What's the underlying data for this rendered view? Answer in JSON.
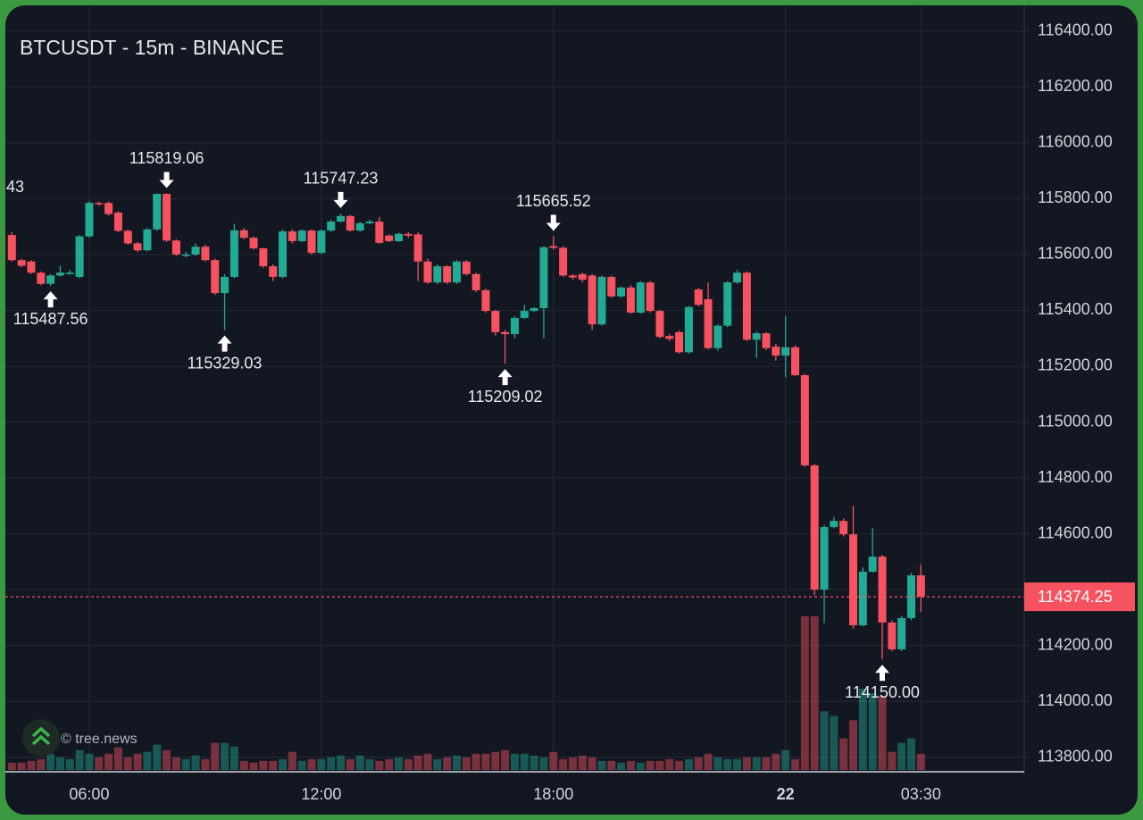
{
  "chart_data": {
    "type": "candlestick",
    "title": "BTCUSDT - 15m - BINANCE",
    "watermark": "© tree.news",
    "clipped_label": "43",
    "categories": [
      null,
      null,
      null,
      null,
      null,
      null,
      null,
      null,
      "06:00",
      null,
      null,
      null,
      null,
      null,
      null,
      null,
      null,
      null,
      null,
      null,
      null,
      null,
      null,
      null,
      null,
      null,
      null,
      null,
      null,
      null,
      null,
      null,
      "12:00",
      null,
      null,
      null,
      null,
      null,
      null,
      null,
      null,
      null,
      null,
      null,
      null,
      null,
      null,
      null,
      null,
      null,
      null,
      null,
      null,
      null,
      null,
      null,
      "18:00",
      null,
      null,
      null,
      null,
      null,
      null,
      null,
      null,
      null,
      null,
      null,
      null,
      null,
      null,
      null,
      null,
      null,
      null,
      null,
      null,
      null,
      null,
      null,
      "22",
      null,
      null,
      null,
      null,
      null,
      null,
      null,
      null,
      null,
      null,
      null,
      null,
      null,
      "03:30"
    ],
    "open": [
      115670,
      115580,
      115575,
      115535,
      115495,
      115525,
      115530,
      115520,
      115665,
      115785,
      115785,
      115750,
      115685,
      115640,
      115615,
      115690,
      115817,
      115650,
      115595,
      115600,
      115628,
      115580,
      115462,
      115520,
      115687,
      115660,
      115622,
      115558,
      115520,
      115683,
      115648,
      115686,
      115606,
      115686,
      115718,
      115738,
      115686,
      115712,
      115718,
      115668,
      115648,
      115674,
      115672,
      115575,
      115500,
      115558,
      115500,
      115575,
      115530,
      115472,
      115398,
      115322,
      115315,
      115373,
      115398,
      115408,
      115630,
      115624,
      115525,
      115530,
      115525,
      115350,
      115520,
      115450,
      115482,
      115392,
      115500,
      115398,
      115308,
      115322,
      115250,
      115475,
      115440,
      115265,
      115345,
      115500,
      115535,
      115295,
      115318,
      115270,
      115238,
      115268,
      115168,
      114845,
      114400,
      114624,
      114646,
      114598,
      114272,
      114464,
      114518,
      114282,
      114186,
      114298,
      114451
    ],
    "high": [
      115680,
      115585,
      115580,
      115540,
      115530,
      115560,
      115545,
      115670,
      115790,
      115790,
      115790,
      115755,
      115690,
      115645,
      115695,
      115819,
      115819.06,
      115655,
      115610,
      115640,
      115635,
      115585,
      115530,
      115710,
      115695,
      115665,
      115625,
      115565,
      115690,
      115690,
      115690,
      115690,
      115690,
      115725,
      115747.23,
      115742,
      115718,
      115725,
      115735,
      115672,
      115678,
      115680,
      115680,
      115585,
      115565,
      115562,
      115580,
      115580,
      115535,
      115478,
      115402,
      115330,
      115380,
      115420,
      115412,
      115630,
      115665.52,
      115630,
      115530,
      115535,
      115530,
      115525,
      115525,
      115486,
      115490,
      115505,
      115505,
      115402,
      115315,
      115328,
      115416,
      115480,
      115500,
      115350,
      115505,
      115545,
      115540,
      115325,
      115322,
      115280,
      115380,
      115275,
      115172,
      114850,
      114632,
      114660,
      114655,
      114700,
      114480,
      114620,
      114525,
      114290,
      114305,
      114460,
      114490
    ],
    "low": [
      115575,
      115555,
      115530,
      115490,
      115487.56,
      115520,
      115528,
      115515,
      115660,
      115775,
      115740,
      115680,
      115635,
      115610,
      115612,
      115685,
      115645,
      115595,
      115590,
      115595,
      115575,
      115455,
      115329.03,
      115515,
      115655,
      115618,
      115552,
      115505,
      115515,
      115640,
      115644,
      115600,
      115602,
      115682,
      115715,
      115682,
      115682,
      115708,
      115638,
      115644,
      115645,
      115660,
      115505,
      115495,
      115495,
      115495,
      115495,
      115525,
      115465,
      115392,
      115310,
      115209.02,
      115300,
      115370,
      115395,
      115300,
      115618,
      115520,
      115510,
      115500,
      115330,
      115345,
      115445,
      115445,
      115388,
      115388,
      115392,
      115300,
      115290,
      115245,
      115245,
      115415,
      115260,
      115255,
      115340,
      115495,
      115290,
      115230,
      115258,
      115220,
      115160,
      115165,
      114840,
      114380,
      114280,
      114620,
      114590,
      114260,
      114268,
      114460,
      114150,
      114180,
      114180,
      114290,
      114320
    ],
    "close": [
      115580,
      115560,
      115535,
      115495,
      115525,
      115535,
      115535,
      115665,
      115785,
      115780,
      115745,
      115685,
      115640,
      115615,
      115690,
      115817,
      115650,
      115600,
      115600,
      115628,
      115580,
      115462,
      115520,
      115687,
      115660,
      115622,
      115558,
      115520,
      115683,
      115648,
      115686,
      115606,
      115686,
      115718,
      115738,
      115686,
      115712,
      115718,
      115642,
      115648,
      115674,
      115668,
      115575,
      115500,
      115558,
      115500,
      115575,
      115530,
      115472,
      115398,
      115322,
      115315,
      115373,
      115398,
      115408,
      115626,
      115624,
      115525,
      115518,
      115510,
      115350,
      115520,
      115450,
      115482,
      115392,
      115500,
      115398,
      115305,
      115298,
      115250,
      115412,
      115420,
      115265,
      115345,
      115500,
      115535,
      115295,
      115318,
      115265,
      115238,
      115268,
      115168,
      114845,
      114400,
      114624,
      114646,
      114598,
      114272,
      114464,
      114518,
      114282,
      114186,
      114298,
      114451,
      114374.25
    ],
    "volume": [
      8,
      8,
      10,
      12,
      18,
      14,
      12,
      22,
      18,
      14,
      18,
      25,
      14,
      18,
      20,
      28,
      22,
      14,
      12,
      16,
      12,
      30,
      30,
      26,
      10,
      8,
      10,
      10,
      12,
      20,
      10,
      12,
      12,
      14,
      16,
      12,
      16,
      12,
      10,
      12,
      14,
      12,
      16,
      18,
      12,
      14,
      16,
      14,
      18,
      18,
      20,
      22,
      18,
      18,
      16,
      14,
      20,
      12,
      14,
      16,
      14,
      10,
      10,
      8,
      10,
      8,
      10,
      10,
      12,
      10,
      12,
      14,
      18,
      14,
      12,
      12,
      14,
      14,
      14,
      18,
      22,
      12,
      170,
      170,
      65,
      60,
      35,
      55,
      90,
      85,
      82,
      20,
      30,
      35,
      18
    ],
    "up_color": "#22ab94",
    "down_color": "#f7525f",
    "ylim": [
      113754,
      116486
    ],
    "yticks": [
      {
        "value": 113800,
        "label": "113800.00"
      },
      {
        "value": 114000,
        "label": "114000.00"
      },
      {
        "value": 114200,
        "label": "114200.00"
      },
      {
        "value": 114400,
        "label": "114400.00"
      },
      {
        "value": 114600,
        "label": "114600.00"
      },
      {
        "value": 114800,
        "label": "114800.00"
      },
      {
        "value": 115000,
        "label": "115000.00"
      },
      {
        "value": 115200,
        "label": "115200.00"
      },
      {
        "value": 115400,
        "label": "115400.00"
      },
      {
        "value": 115600,
        "label": "115600.00"
      },
      {
        "value": 115800,
        "label": "115800.00"
      },
      {
        "value": 116000,
        "label": "116000.00"
      },
      {
        "value": 116200,
        "label": "116200.00"
      },
      {
        "value": 116400,
        "label": "116400.00"
      }
    ],
    "grid": true,
    "last_price": 114374.25,
    "annotations": [
      {
        "index": 16,
        "value": 115819.06,
        "label": "115819.06",
        "side": "high"
      },
      {
        "index": 34,
        "value": 115747.23,
        "label": "115747.23",
        "side": "high"
      },
      {
        "index": 56,
        "value": 115665.52,
        "label": "115665.52",
        "side": "high"
      },
      {
        "index": 4,
        "value": 115487.56,
        "label": "115487.56",
        "side": "low"
      },
      {
        "index": 22,
        "value": 115329.03,
        "label": "115329.03",
        "side": "low"
      },
      {
        "index": 51,
        "value": 115209.02,
        "label": "115209.02",
        "side": "low"
      },
      {
        "index": 90,
        "value": 114150,
        "label": "114150.00",
        "side": "low"
      }
    ]
  }
}
